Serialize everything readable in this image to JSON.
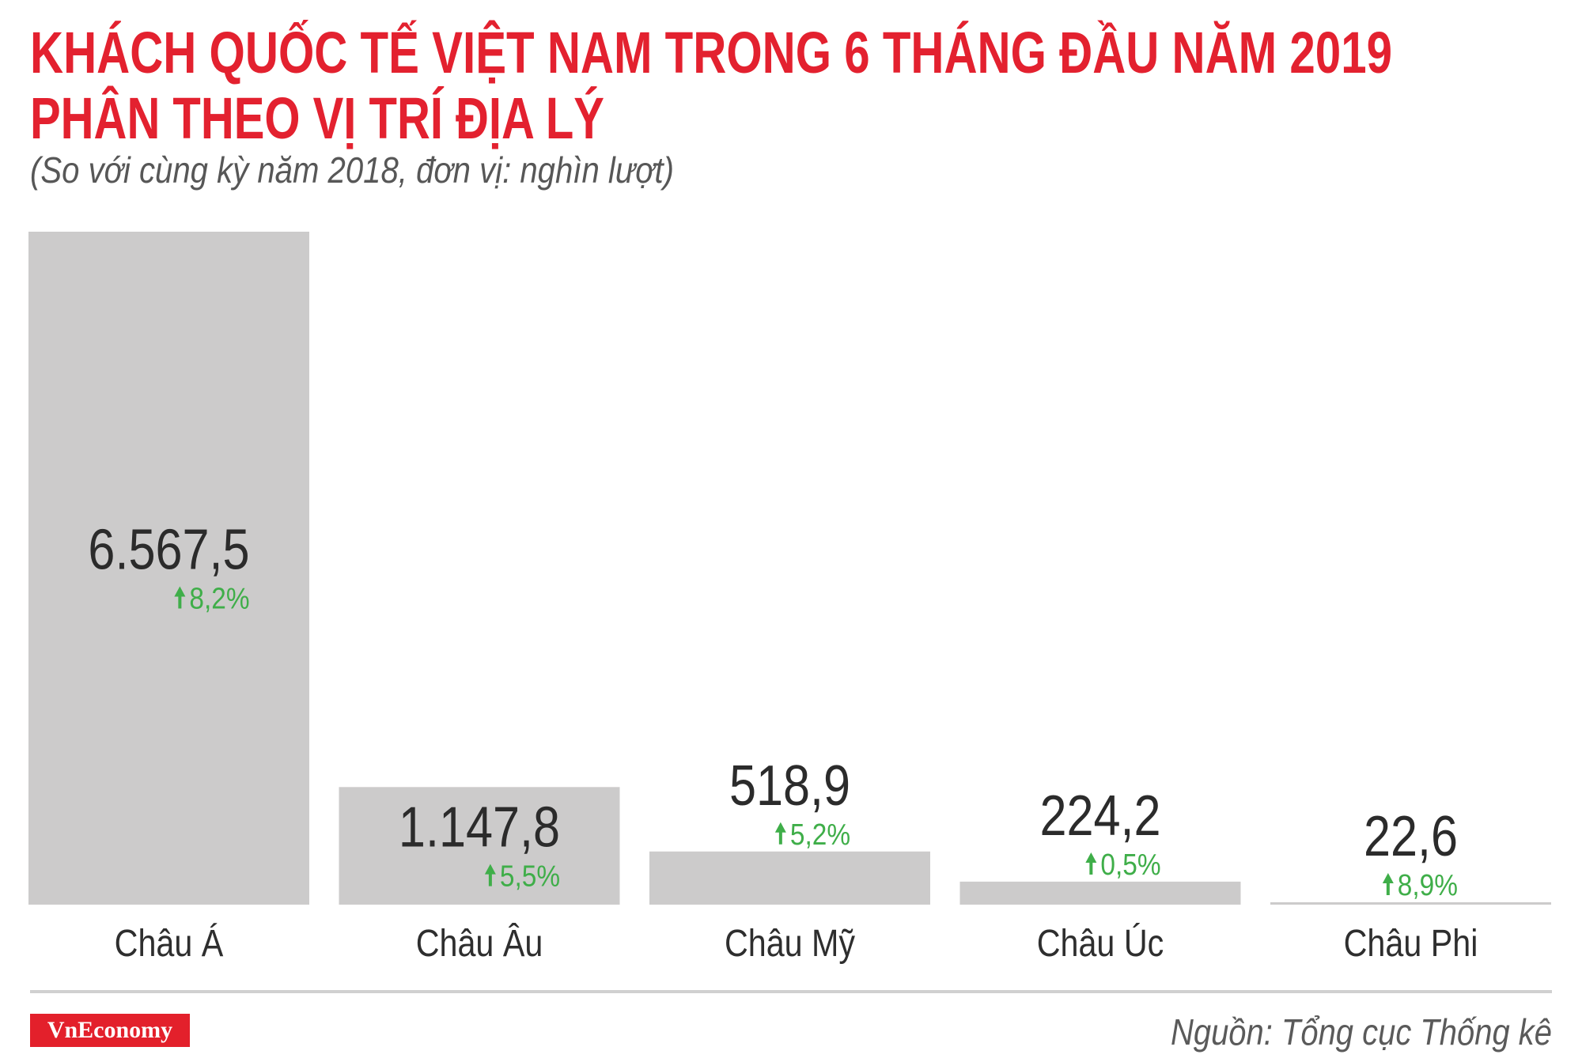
{
  "chart_data": {
    "type": "bar",
    "title": [
      "KHÁCH QUỐC TẾ VIỆT NAM TRONG 6 THÁNG ĐẦU NĂM 2019",
      "PHÂN THEO VỊ TRÍ ĐỊA LÝ"
    ],
    "subtitle": "(So với cùng kỳ năm 2018, đơn vị: nghìn lượt)",
    "categories": [
      "Châu Á",
      "Châu Âu",
      "Châu Mỹ",
      "Châu Úc",
      "Châu Phi"
    ],
    "values": [
      6567.5,
      1147.8,
      518.9,
      224.2,
      22.6
    ],
    "value_labels": [
      "6.567,5",
      "1.147,8",
      "518,9",
      "224,2",
      "22,6"
    ],
    "change_labels": [
      "8,2%",
      "5,5%",
      "5,2%",
      "0,5%",
      "8,9%"
    ],
    "change_icons": [
      "up-arrow-icon",
      "up-arrow-icon",
      "up-arrow-icon",
      "up-arrow-icon",
      "up-arrow-icon"
    ],
    "grid": false
  },
  "footer": {
    "brand": "VnEconomy",
    "source": "Nguồn: Tổng cục Thống kê"
  },
  "colors": {
    "title": "#e3212f",
    "bar": "#cccbcb",
    "increase": "#3fae49",
    "brand": "#e3202b",
    "divider": "#d0d0d0"
  }
}
